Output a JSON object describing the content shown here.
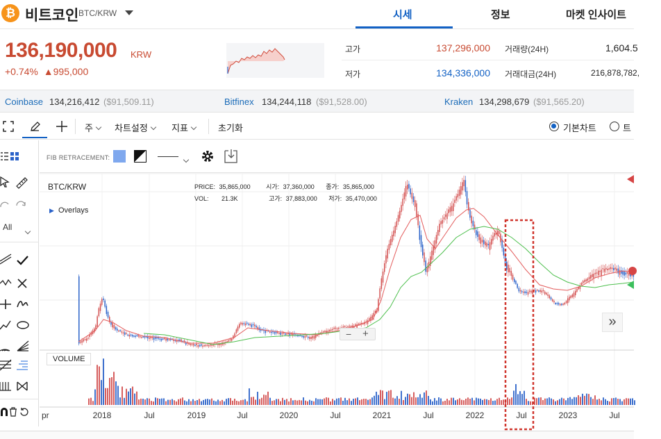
{
  "header": {
    "coin_glyph": "₿",
    "coin_name": "비트코인",
    "pair": "BTC/KRW",
    "tabs": [
      {
        "label": "시세",
        "active": true
      },
      {
        "label": "정보",
        "active": false
      },
      {
        "label": "마켓 인사이트",
        "active": false
      }
    ]
  },
  "ticker": {
    "price": "136,190,000",
    "unit": "KRW",
    "change_pct": "+0.74%",
    "change_abs": "▲995,000",
    "high_label": "고가",
    "high_value": "137,296,000",
    "low_label": "저가",
    "low_value": "134,336,000",
    "volume_label": "거래량(24H)",
    "volume_value": "1,604.5",
    "amount_label": "거래대금(24H)",
    "amount_value": "216,878,782,",
    "colors": {
      "up": "#c84a31",
      "down": "#1261c4"
    }
  },
  "exchanges": [
    {
      "name": "Coinbase",
      "krw": "134,216,412",
      "usd": "($91,509.11)"
    },
    {
      "name": "Bitfinex",
      "krw": "134,244,118",
      "usd": "($91,528.00)"
    },
    {
      "name": "Kraken",
      "krw": "134,298,679",
      "usd": "($91,565.20)"
    }
  ],
  "toolbar": {
    "period": "주",
    "chart_settings": "차트설정",
    "indicator": "지표",
    "reset": "초기화",
    "basic_chart": "기본차트",
    "other_chart": "트"
  },
  "toolpanel": {
    "all_label": "All"
  },
  "fib": {
    "label": "FIB RETRACEMENT:"
  },
  "chart": {
    "symbol": "BTC/KRW",
    "overlays_label": "Overlays",
    "price_label": "PRICE:",
    "price_value": "35,865,000",
    "open_label": "시가:",
    "open_value": "37,360,000",
    "close_label": "종가:",
    "close_value": "35,865,000",
    "vol_label": "VOL:",
    "vol_value": "21.3K",
    "high_label": "고가:",
    "high_value": "37,883,000",
    "low_label": "저가:",
    "low_value": "35,470,000",
    "volume_panel_label": "VOLUME",
    "zoom_out": "−",
    "zoom_in": "+",
    "scroll_right": "»",
    "x_ticks": [
      "pr",
      "2018",
      "Jul",
      "2019",
      "Jul",
      "2020",
      "Jul",
      "2021",
      "Jul",
      "2022",
      "Jul",
      "2023",
      "Jul"
    ],
    "colors": {
      "up": "#d24c4c",
      "down": "#2a62c9",
      "ma_short": "#e35b5b",
      "ma_long": "#4cbf4c",
      "highlight": "#d0342c"
    }
  }
}
